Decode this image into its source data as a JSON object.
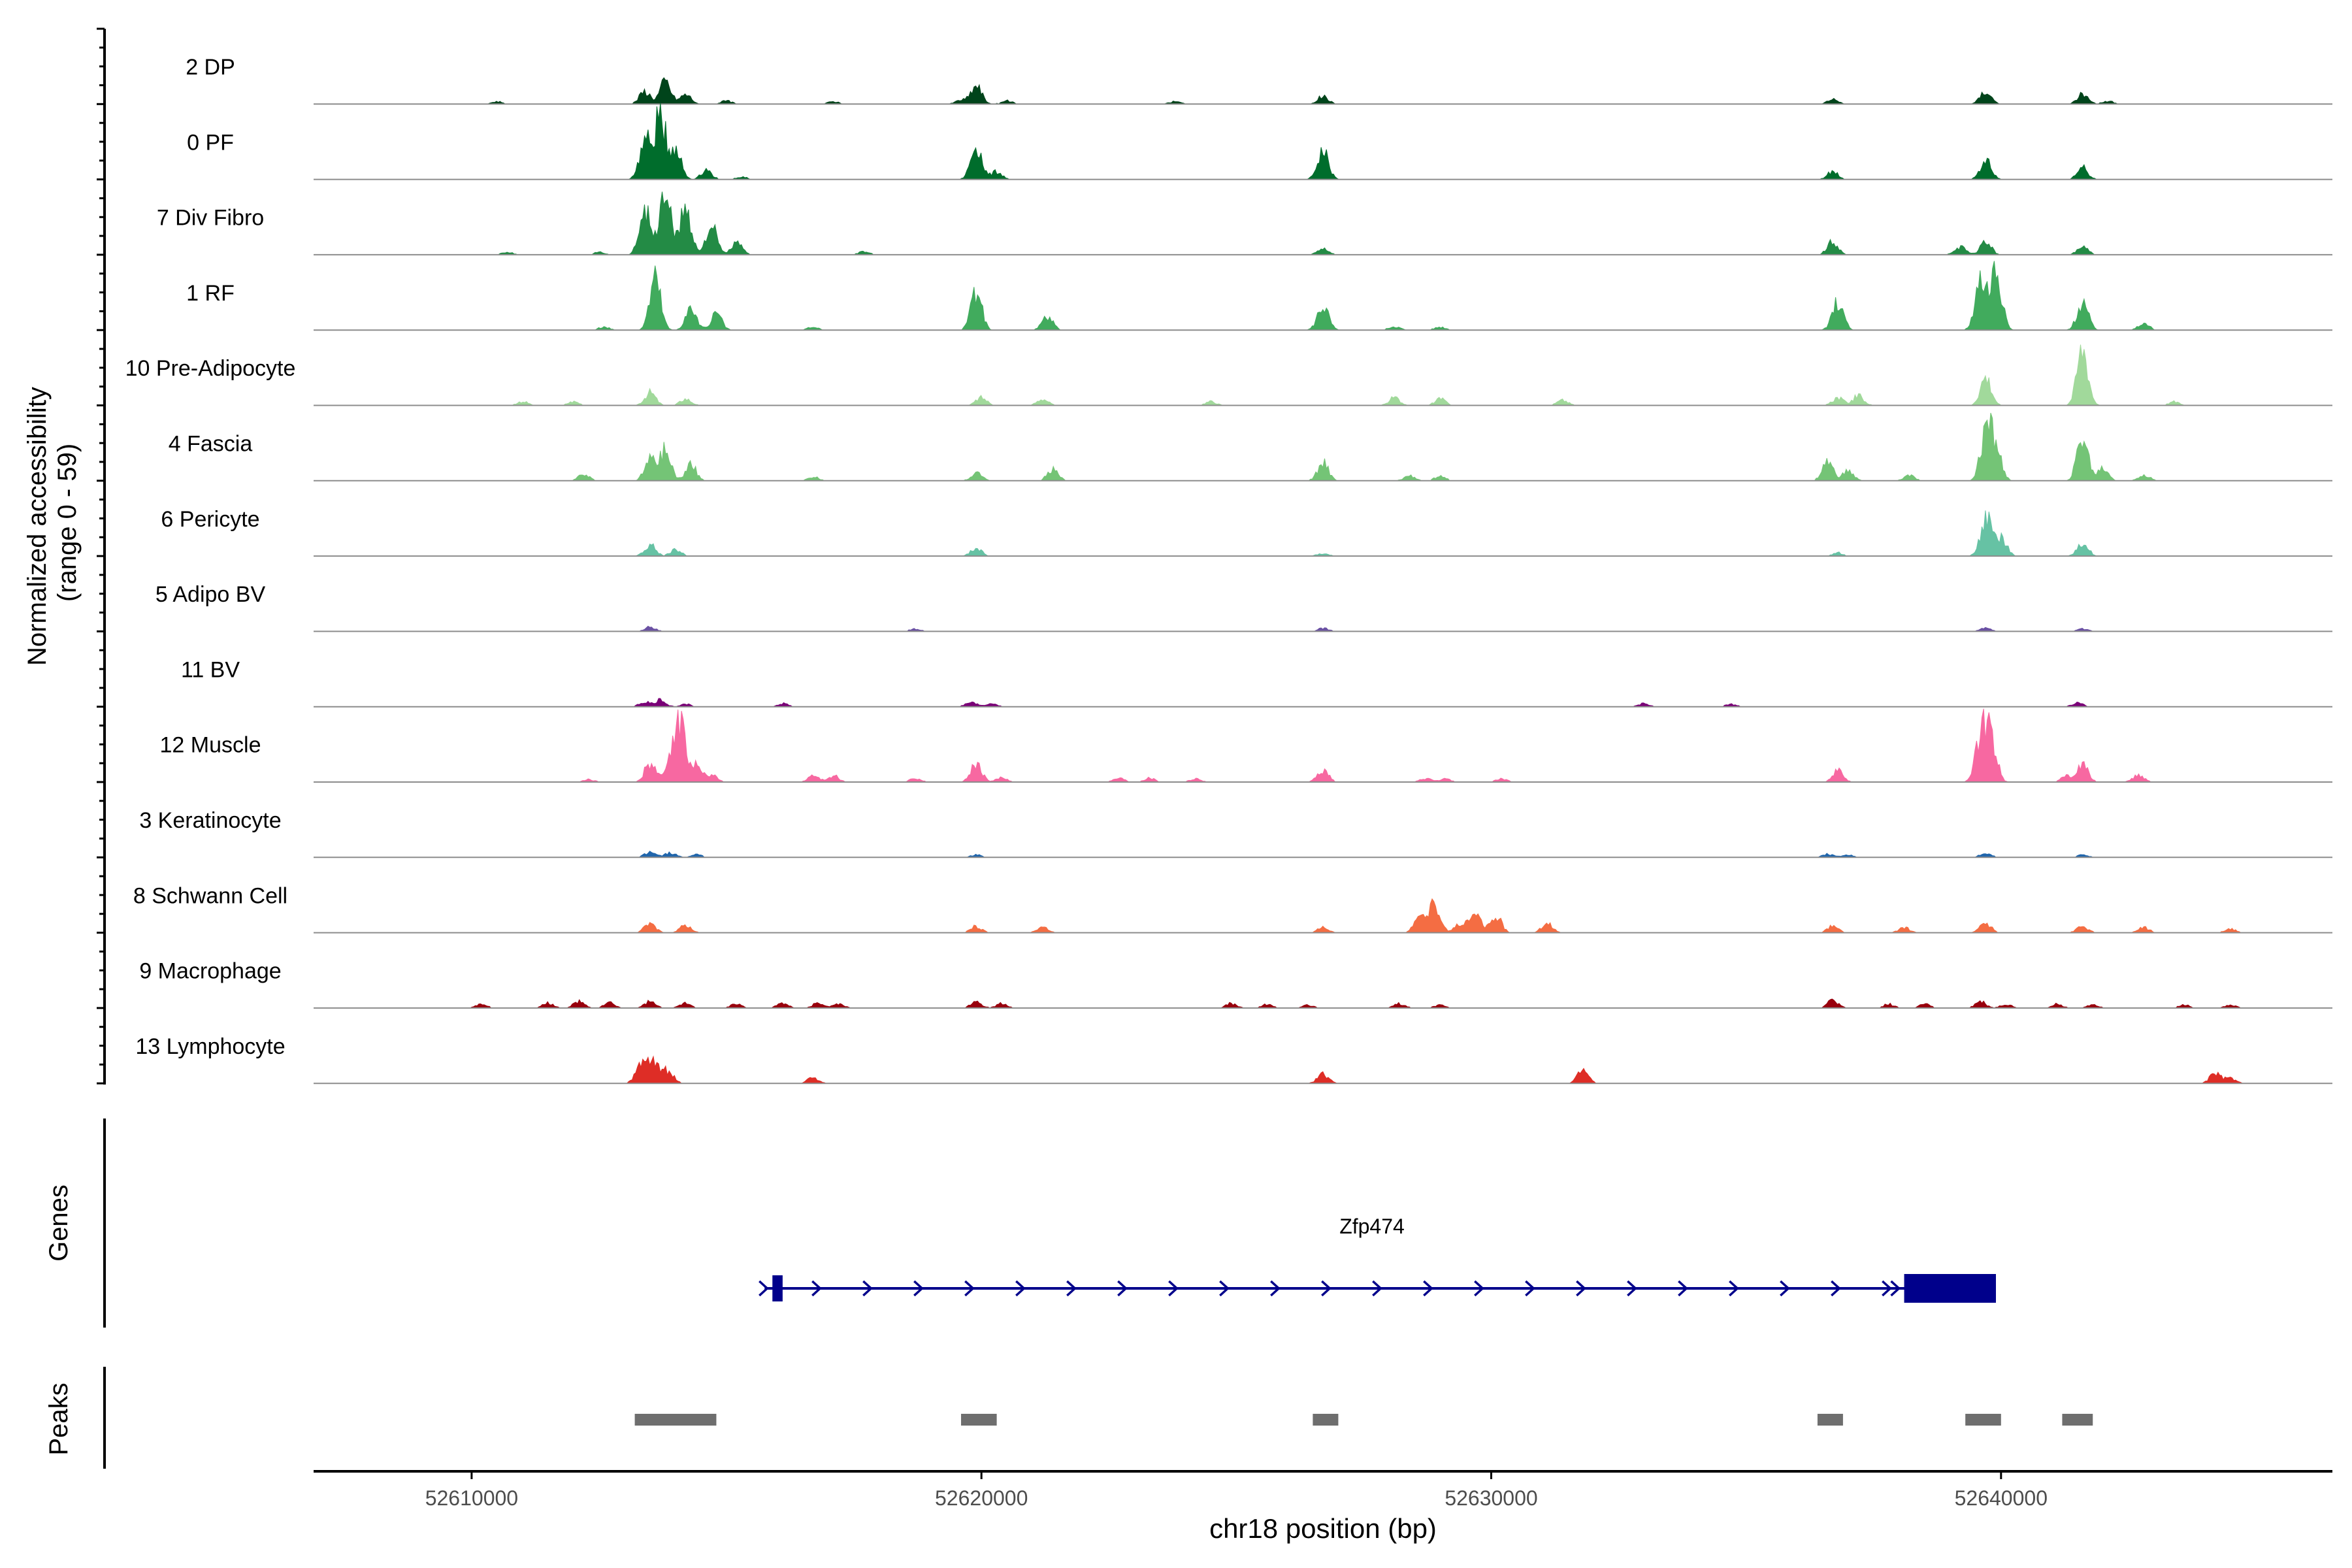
{
  "chart_data": {
    "type": "area",
    "title": "",
    "ylabel_line1": "Normalized accessibility",
    "ylabel_line2": "(range 0 - 59)",
    "yrange": [
      0,
      59
    ],
    "xlabel": "chr18 position (bp)",
    "xlim": [
      52606900,
      52646500
    ],
    "x_ticks": [
      52610000,
      52620000,
      52630000,
      52640000
    ],
    "x_tick_labels": [
      "52610000",
      "52620000",
      "52630000",
      "52640000"
    ],
    "tracks": [
      {
        "name": "2 DP",
        "color": "#00441b",
        "peaks": [
          [
            52610500,
            0.04
          ],
          [
            52613400,
            0.2
          ],
          [
            52613800,
            0.35
          ],
          [
            52614200,
            0.15
          ],
          [
            52615000,
            0.05
          ],
          [
            52617100,
            0.04
          ],
          [
            52619600,
            0.06
          ],
          [
            52619900,
            0.28
          ],
          [
            52620500,
            0.05
          ],
          [
            52623800,
            0.04
          ],
          [
            52626700,
            0.12
          ],
          [
            52636700,
            0.08
          ],
          [
            52639700,
            0.2
          ],
          [
            52641600,
            0.15
          ],
          [
            52642100,
            0.05
          ]
        ]
      },
      {
        "name": "0 PF",
        "color": "#006d2c",
        "peaks": [
          [
            52613400,
            0.6
          ],
          [
            52613700,
            1.0
          ],
          [
            52614000,
            0.5
          ],
          [
            52614600,
            0.15
          ],
          [
            52615300,
            0.04
          ],
          [
            52619900,
            0.55
          ],
          [
            52620300,
            0.12
          ],
          [
            52626700,
            0.45
          ],
          [
            52636700,
            0.12
          ],
          [
            52639700,
            0.3
          ],
          [
            52641600,
            0.18
          ]
        ]
      },
      {
        "name": "7 Div Fibro",
        "color": "#238b45",
        "peaks": [
          [
            52609600,
            0.05
          ],
          [
            52610700,
            0.04
          ],
          [
            52612500,
            0.04
          ],
          [
            52613400,
            0.75
          ],
          [
            52613800,
            1.0
          ],
          [
            52614200,
            0.75
          ],
          [
            52614700,
            0.45
          ],
          [
            52615200,
            0.18
          ],
          [
            52617700,
            0.05
          ],
          [
            52626700,
            0.1
          ],
          [
            52636700,
            0.2
          ],
          [
            52639200,
            0.12
          ],
          [
            52639700,
            0.2
          ],
          [
            52641600,
            0.12
          ]
        ]
      },
      {
        "name": "1 RF",
        "color": "#41ab5d",
        "peaks": [
          [
            52612600,
            0.05
          ],
          [
            52613600,
            0.85
          ],
          [
            52614300,
            0.35
          ],
          [
            52614800,
            0.25
          ],
          [
            52616700,
            0.05
          ],
          [
            52619900,
            0.6
          ],
          [
            52621300,
            0.2
          ],
          [
            52626700,
            0.4
          ],
          [
            52628100,
            0.06
          ],
          [
            52629000,
            0.05
          ],
          [
            52636800,
            0.45
          ],
          [
            52639600,
            0.85
          ],
          [
            52639900,
            1.0
          ],
          [
            52641600,
            0.45
          ],
          [
            52642800,
            0.1
          ]
        ]
      },
      {
        "name": "10 Pre-Adipocyte",
        "color": "#a1d99b",
        "peaks": [
          [
            52611000,
            0.06
          ],
          [
            52612000,
            0.06
          ],
          [
            52613500,
            0.2
          ],
          [
            52614200,
            0.1
          ],
          [
            52620000,
            0.12
          ],
          [
            52621200,
            0.1
          ],
          [
            52624500,
            0.06
          ],
          [
            52628100,
            0.12
          ],
          [
            52629000,
            0.1
          ],
          [
            52631400,
            0.08
          ],
          [
            52636800,
            0.12
          ],
          [
            52637200,
            0.15
          ],
          [
            52639700,
            0.45
          ],
          [
            52641600,
            0.9
          ],
          [
            52643400,
            0.06
          ]
        ]
      },
      {
        "name": "4 Fascia",
        "color": "#74c476",
        "peaks": [
          [
            52612200,
            0.1
          ],
          [
            52613500,
            0.35
          ],
          [
            52613800,
            0.5
          ],
          [
            52614300,
            0.25
          ],
          [
            52616700,
            0.06
          ],
          [
            52619900,
            0.12
          ],
          [
            52621400,
            0.18
          ],
          [
            52626700,
            0.28
          ],
          [
            52628400,
            0.08
          ],
          [
            52629000,
            0.07
          ],
          [
            52636600,
            0.3
          ],
          [
            52637000,
            0.15
          ],
          [
            52638200,
            0.08
          ],
          [
            52639700,
            0.75
          ],
          [
            52639900,
            0.5
          ],
          [
            52641600,
            0.7
          ],
          [
            52642000,
            0.2
          ],
          [
            52642800,
            0.1
          ]
        ]
      },
      {
        "name": "6 Pericyte",
        "color": "#66c2a4",
        "peaks": [
          [
            52613500,
            0.18
          ],
          [
            52614000,
            0.1
          ],
          [
            52619900,
            0.12
          ],
          [
            52626700,
            0.04
          ],
          [
            52636800,
            0.05
          ],
          [
            52639700,
            0.6
          ],
          [
            52640000,
            0.3
          ],
          [
            52641600,
            0.22
          ]
        ]
      },
      {
        "name": "5 Adipo BV",
        "color": "#6a51a3",
        "peaks": [
          [
            52613500,
            0.07
          ],
          [
            52618700,
            0.04
          ],
          [
            52626700,
            0.05
          ],
          [
            52639700,
            0.05
          ],
          [
            52641600,
            0.04
          ]
        ]
      },
      {
        "name": "11 BV",
        "color": "#7a0177",
        "peaks": [
          [
            52613400,
            0.08
          ],
          [
            52613700,
            0.1
          ],
          [
            52614200,
            0.04
          ],
          [
            52616100,
            0.05
          ],
          [
            52619800,
            0.07
          ],
          [
            52620200,
            0.05
          ],
          [
            52633000,
            0.05
          ],
          [
            52634700,
            0.04
          ],
          [
            52641500,
            0.06
          ]
        ]
      },
      {
        "name": "12 Muscle",
        "color": "#f768a1",
        "peaks": [
          [
            52612300,
            0.04
          ],
          [
            52613500,
            0.3
          ],
          [
            52613900,
            0.25
          ],
          [
            52614100,
            0.95
          ],
          [
            52614400,
            0.25
          ],
          [
            52614700,
            0.12
          ],
          [
            52616700,
            0.1
          ],
          [
            52617100,
            0.1
          ],
          [
            52618700,
            0.06
          ],
          [
            52619900,
            0.3
          ],
          [
            52620400,
            0.07
          ],
          [
            52622700,
            0.06
          ],
          [
            52623300,
            0.06
          ],
          [
            52624200,
            0.05
          ],
          [
            52626700,
            0.2
          ],
          [
            52628700,
            0.06
          ],
          [
            52629100,
            0.05
          ],
          [
            52630200,
            0.05
          ],
          [
            52636800,
            0.18
          ],
          [
            52639600,
            0.65
          ],
          [
            52639800,
            0.75
          ],
          [
            52641300,
            0.1
          ],
          [
            52641600,
            0.28
          ],
          [
            52642700,
            0.12
          ]
        ]
      },
      {
        "name": "3 Keratinocyte",
        "color": "#2166ac",
        "peaks": [
          [
            52613500,
            0.08
          ],
          [
            52613900,
            0.07
          ],
          [
            52614400,
            0.05
          ],
          [
            52619900,
            0.04
          ],
          [
            52636600,
            0.05
          ],
          [
            52637000,
            0.04
          ],
          [
            52639700,
            0.07
          ],
          [
            52641600,
            0.04
          ]
        ]
      },
      {
        "name": "8 Schwann Cell",
        "color": "#f46d43",
        "peaks": [
          [
            52613500,
            0.15
          ],
          [
            52614200,
            0.12
          ],
          [
            52619900,
            0.1
          ],
          [
            52621200,
            0.08
          ],
          [
            52626700,
            0.08
          ],
          [
            52628600,
            0.25
          ],
          [
            52628900,
            0.45
          ],
          [
            52629400,
            0.15
          ],
          [
            52629700,
            0.3
          ],
          [
            52630100,
            0.25
          ],
          [
            52631100,
            0.15
          ],
          [
            52636700,
            0.1
          ],
          [
            52638100,
            0.08
          ],
          [
            52639700,
            0.15
          ],
          [
            52641600,
            0.1
          ],
          [
            52642800,
            0.08
          ],
          [
            52644500,
            0.06
          ]
        ]
      },
      {
        "name": "9 Macrophage",
        "color": "#99000d",
        "peaks": [
          [
            52610200,
            0.06
          ],
          [
            52611500,
            0.08
          ],
          [
            52612100,
            0.1
          ],
          [
            52612700,
            0.08
          ],
          [
            52613500,
            0.1
          ],
          [
            52614200,
            0.09
          ],
          [
            52615200,
            0.07
          ],
          [
            52616100,
            0.08
          ],
          [
            52616800,
            0.08
          ],
          [
            52617200,
            0.06
          ],
          [
            52619900,
            0.1
          ],
          [
            52620400,
            0.07
          ],
          [
            52624900,
            0.07
          ],
          [
            52625600,
            0.06
          ],
          [
            52626400,
            0.05
          ],
          [
            52628200,
            0.07
          ],
          [
            52629000,
            0.05
          ],
          [
            52636700,
            0.12
          ],
          [
            52637800,
            0.06
          ],
          [
            52638500,
            0.06
          ],
          [
            52639600,
            0.1
          ],
          [
            52640100,
            0.06
          ],
          [
            52641100,
            0.06
          ],
          [
            52641800,
            0.06
          ],
          [
            52643600,
            0.05
          ],
          [
            52644500,
            0.05
          ]
        ]
      },
      {
        "name": "13 Lymphocyte",
        "color": "#de2d26",
        "peaks": [
          [
            52609600,
            0.08
          ],
          [
            52613300,
            0.22
          ],
          [
            52613500,
            0.28
          ],
          [
            52613700,
            0.2
          ],
          [
            52613900,
            0.12
          ],
          [
            52616700,
            0.09
          ],
          [
            52626700,
            0.15
          ],
          [
            52631800,
            0.2
          ],
          [
            52644200,
            0.15
          ],
          [
            52644500,
            0.08
          ]
        ]
      }
    ],
    "genes": {
      "label": "Genes",
      "name": "Zfp474",
      "color": "#00008b",
      "strand": "+",
      "start": 52615900,
      "end": 52639900,
      "exons": [
        [
          52615900,
          52616100
        ],
        [
          52638100,
          52639900
        ]
      ]
    },
    "peaks_track": {
      "label": "Peaks",
      "color": "#6e6e6e",
      "regions": [
        [
          52613200,
          52614800
        ],
        [
          52619600,
          52620300
        ],
        [
          52626500,
          52627000
        ],
        [
          52636400,
          52636900
        ],
        [
          52639300,
          52640000
        ],
        [
          52641200,
          52641800
        ]
      ]
    }
  }
}
